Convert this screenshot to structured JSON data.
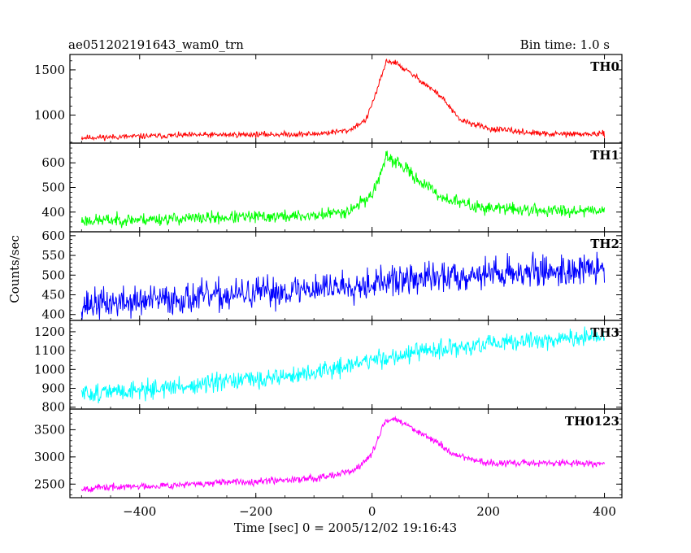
{
  "chart_data": {
    "type": "line",
    "title": "ae051202191643_wam0_trn",
    "subtitle": "Bin time: 1.0 s",
    "xlabel": "Time [sec] 0 = 2005/12/02 19:16:43",
    "ylabel": "Counts/sec",
    "xlim": [
      -520,
      430
    ],
    "x_ticks": [
      -400,
      -200,
      0,
      200,
      400
    ],
    "x_tick_labels": [
      "−400",
      "−200",
      "0",
      "200",
      "400"
    ],
    "bin_time_s": 1.0,
    "x_range": [
      -500,
      400
    ],
    "panels": [
      {
        "name": "TH0",
        "color": "#ff0000",
        "ylim": [
          690,
          1670
        ],
        "yticks": [
          1000,
          1500
        ],
        "ytick_labels": [
          "1000",
          "1500"
        ],
        "profile": [
          [
            -500,
            750
          ],
          [
            -300,
            780
          ],
          [
            -100,
            790
          ],
          [
            -40,
            830
          ],
          [
            -10,
            950
          ],
          [
            10,
            1300
          ],
          [
            25,
            1600
          ],
          [
            40,
            1580
          ],
          [
            80,
            1400
          ],
          [
            120,
            1200
          ],
          [
            150,
            950
          ],
          [
            200,
            850
          ],
          [
            300,
            790
          ],
          [
            400,
            790
          ]
        ],
        "noise": 22,
        "noise_pct_of_value": 0,
        "seed": 11
      },
      {
        "name": "TH1",
        "color": "#00ff00",
        "ylim": [
          320,
          680
        ],
        "yticks": [
          400,
          500,
          600
        ],
        "ytick_labels": [
          "400",
          "500",
          "600"
        ],
        "profile": [
          [
            -500,
            365
          ],
          [
            -300,
            375
          ],
          [
            -100,
            385
          ],
          [
            -40,
            405
          ],
          [
            0,
            470
          ],
          [
            25,
            620
          ],
          [
            45,
            600
          ],
          [
            80,
            530
          ],
          [
            120,
            460
          ],
          [
            180,
            420
          ],
          [
            300,
            405
          ],
          [
            400,
            410
          ]
        ],
        "noise": 18,
        "noise_pct_of_value": 0,
        "seed": 23
      },
      {
        "name": "TH2",
        "color": "#0000ff",
        "ylim": [
          385,
          610
        ],
        "yticks": [
          400,
          450,
          500,
          550,
          600
        ],
        "ytick_labels": [
          "400",
          "450",
          "500",
          "550",
          "600"
        ],
        "profile": [
          [
            -500,
            425
          ],
          [
            -400,
            433
          ],
          [
            -200,
            453
          ],
          [
            0,
            480
          ],
          [
            200,
            505
          ],
          [
            400,
            515
          ]
        ],
        "noise": 28,
        "noise_pct_of_value": 0,
        "seed": 37
      },
      {
        "name": "TH3",
        "color": "#00ffff",
        "ylim": [
          790,
          1260
        ],
        "yticks": [
          800,
          900,
          1000,
          1100,
          1200
        ],
        "ytick_labels": [
          "800",
          "900",
          "1000",
          "1100",
          "1200"
        ],
        "profile": [
          [
            -500,
            870
          ],
          [
            -300,
            915
          ],
          [
            -100,
            980
          ],
          [
            0,
            1050
          ],
          [
            100,
            1100
          ],
          [
            200,
            1130
          ],
          [
            300,
            1160
          ],
          [
            400,
            1170
          ]
        ],
        "noise": 35,
        "noise_pct_of_value": 0,
        "seed": 51
      },
      {
        "name": "TH0123",
        "color": "#ff00ff",
        "ylim": [
          2250,
          3880
        ],
        "yticks": [
          2500,
          3000,
          3500
        ],
        "ytick_labels": [
          "2500",
          "3000",
          "3500"
        ],
        "profile": [
          [
            -500,
            2420
          ],
          [
            -300,
            2500
          ],
          [
            -100,
            2610
          ],
          [
            -30,
            2750
          ],
          [
            0,
            3050
          ],
          [
            20,
            3600
          ],
          [
            35,
            3720
          ],
          [
            60,
            3580
          ],
          [
            100,
            3350
          ],
          [
            140,
            3050
          ],
          [
            200,
            2880
          ],
          [
            300,
            2890
          ],
          [
            400,
            2880
          ]
        ],
        "noise": 45,
        "noise_pct_of_value": 0,
        "seed": 67
      }
    ]
  }
}
